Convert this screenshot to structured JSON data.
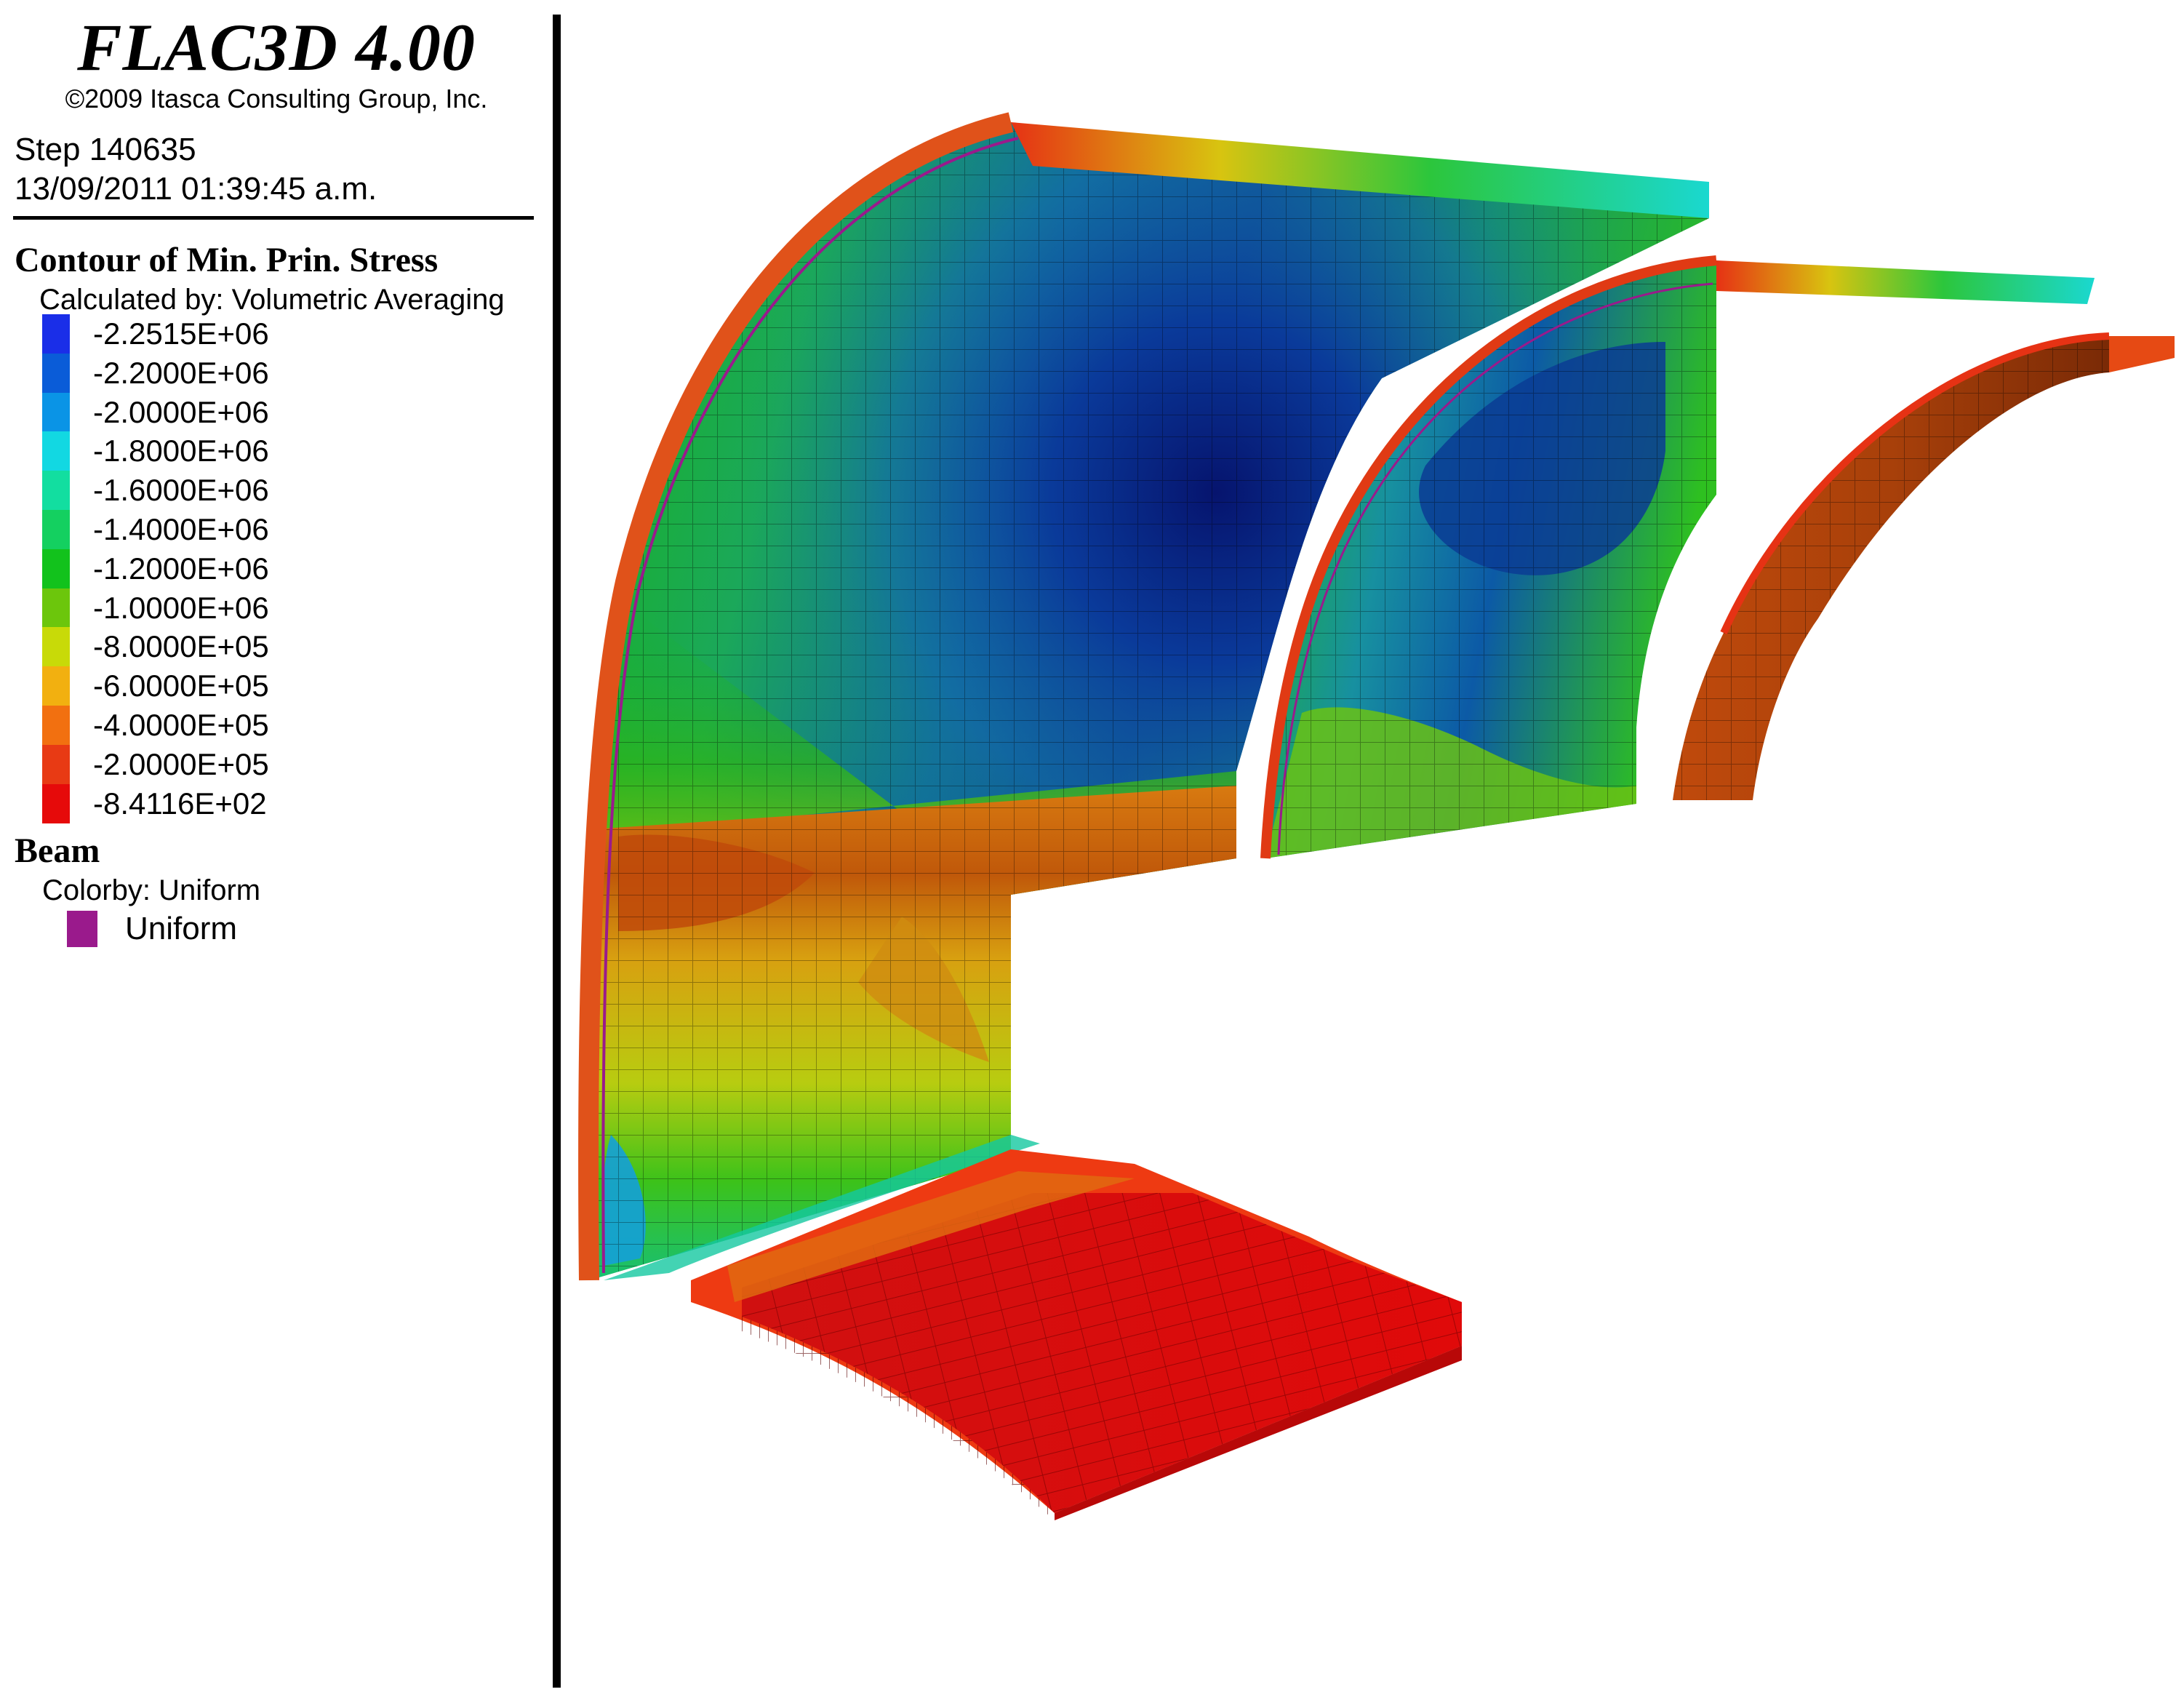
{
  "window": {
    "app_title": "FLAC3D 4.00",
    "copyright": "©2009 Itasca Consulting Group, Inc.",
    "step": "Step 140635",
    "timestamp": "13/09/2011 01:39:45 a.m."
  },
  "contour": {
    "title": "Contour of Min. Prin. Stress",
    "calculated_by": "Calculated by:  Volumetric Averaging",
    "scale": [
      {
        "label": "-2.2515E+06",
        "color": "#1a2ee8"
      },
      {
        "label": "-2.2000E+06",
        "color": "#0a5cd8"
      },
      {
        "label": "-2.0000E+06",
        "color": "#0a94e6"
      },
      {
        "label": "-1.8000E+06",
        "color": "#12d8e2"
      },
      {
        "label": "-1.6000E+06",
        "color": "#12dea0"
      },
      {
        "label": "-1.4000E+06",
        "color": "#14d060"
      },
      {
        "label": "-1.2000E+06",
        "color": "#12c21c"
      },
      {
        "label": "-1.0000E+06",
        "color": "#6cc60c"
      },
      {
        "label": "-8.0000E+05",
        "color": "#c8da08"
      },
      {
        "label": "-6.0000E+05",
        "color": "#f2b010"
      },
      {
        "label": "-4.0000E+05",
        "color": "#f27010"
      },
      {
        "label": "-2.0000E+05",
        "color": "#e83a14"
      },
      {
        "label": "-8.4116E+02",
        "color": "#e60a0a"
      }
    ]
  },
  "beam": {
    "title": "Beam",
    "colorby": "Colorby: Uniform",
    "uniform_label": "Uniform",
    "uniform_color": "#9a1a8c"
  }
}
